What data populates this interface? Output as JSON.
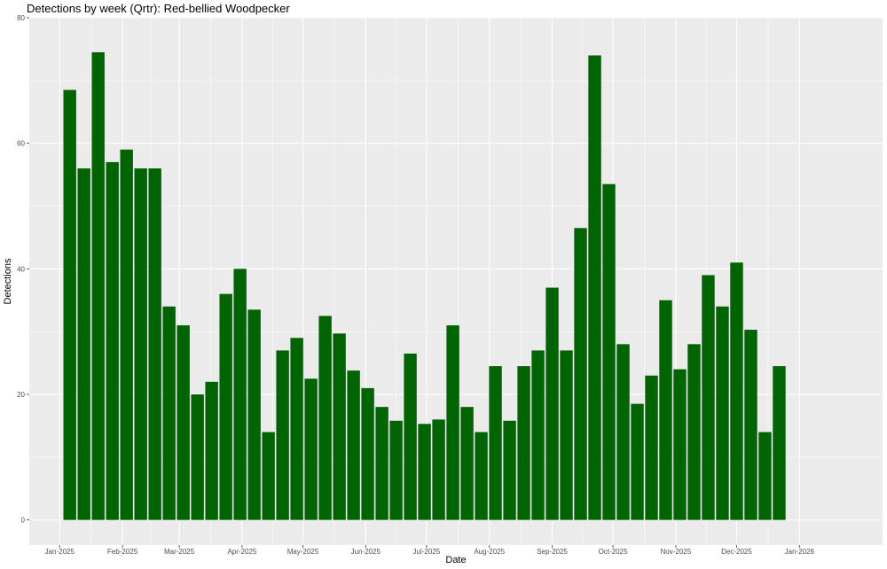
{
  "chart_data": {
    "type": "bar",
    "title": "Detections by week (Qrtr): Red-bellied Woodpecker",
    "xlabel": "Date",
    "ylabel": "Detections",
    "ylim": [
      -4,
      80
    ],
    "yticks": [
      0,
      20,
      40,
      60,
      80
    ],
    "xlim": [
      "2024-12-17",
      "2026-02-11"
    ],
    "xticks": [
      {
        "date": "2025-01-01",
        "label": "Jan-2025"
      },
      {
        "date": "2025-02-01",
        "label": "Feb-2025"
      },
      {
        "date": "2025-03-01",
        "label": "Mar-2025"
      },
      {
        "date": "2025-04-01",
        "label": "Apr-2025"
      },
      {
        "date": "2025-05-01",
        "label": "May-2025"
      },
      {
        "date": "2025-06-01",
        "label": "Jun-2025"
      },
      {
        "date": "2025-07-01",
        "label": "Jul-2025"
      },
      {
        "date": "2025-08-01",
        "label": "Aug-2025"
      },
      {
        "date": "2025-09-01",
        "label": "Sep-2025"
      },
      {
        "date": "2025-10-01",
        "label": "Oct-2025"
      },
      {
        "date": "2025-11-01",
        "label": "Nov-2025"
      },
      {
        "date": "2025-12-01",
        "label": "Dec-2025"
      },
      {
        "date": "2026-01-01",
        "label": "Jan-2026"
      }
    ],
    "x": [
      "2025-01-06",
      "2025-01-13",
      "2025-01-20",
      "2025-01-27",
      "2025-02-03",
      "2025-02-10",
      "2025-02-17",
      "2025-02-24",
      "2025-03-03",
      "2025-03-10",
      "2025-03-17",
      "2025-03-24",
      "2025-03-31",
      "2025-04-07",
      "2025-04-14",
      "2025-04-21",
      "2025-04-28",
      "2025-05-05",
      "2025-05-12",
      "2025-05-19",
      "2025-05-26",
      "2025-06-02",
      "2025-06-09",
      "2025-06-16",
      "2025-06-23",
      "2025-06-30",
      "2025-07-07",
      "2025-07-14",
      "2025-07-21",
      "2025-07-28",
      "2025-08-04",
      "2025-08-11",
      "2025-08-18",
      "2025-08-25",
      "2025-09-01",
      "2025-09-08",
      "2025-09-15",
      "2025-09-22",
      "2025-09-29",
      "2025-10-06",
      "2025-10-13",
      "2025-10-20",
      "2025-10-27",
      "2025-11-03",
      "2025-11-10",
      "2025-11-17",
      "2025-11-24",
      "2025-12-01",
      "2025-12-08",
      "2025-12-15",
      "2025-12-22"
    ],
    "values": [
      68.5,
      56,
      74.5,
      57,
      59,
      56,
      56,
      34,
      31,
      20,
      22,
      36,
      40,
      33.5,
      14,
      27,
      29,
      22.5,
      32.5,
      29.7,
      23.8,
      21,
      18,
      15.8,
      26.5,
      15.3,
      16,
      31,
      18,
      14,
      24.5,
      15.8,
      24.5,
      27,
      37,
      27,
      46.5,
      74,
      53.5,
      28,
      18.5,
      23,
      35,
      24,
      28,
      39,
      34,
      41,
      30.3,
      14,
      24.5
    ],
    "bar_color": "#006400",
    "panel_background": "#ebebeb",
    "grid": true
  }
}
